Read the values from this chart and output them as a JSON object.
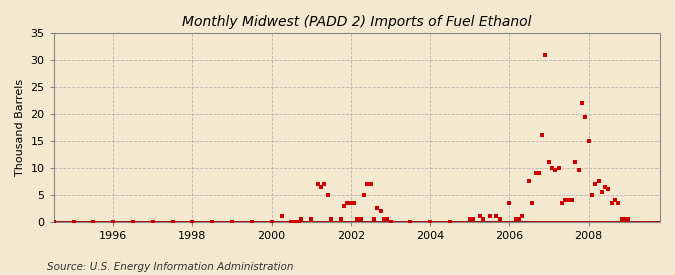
{
  "title": "Monthly Midwest (PADD 2) Imports of Fuel Ethanol",
  "ylabel": "Thousand Barrels",
  "source": "Source: U.S. Energy Information Administration",
  "background_color": "#f5e8d0",
  "plot_bg_color": "#f5e8d0",
  "marker_color": "#cc0000",
  "line_color": "#8b0000",
  "ylim": [
    0,
    35
  ],
  "yticks": [
    0,
    5,
    10,
    15,
    20,
    25,
    30,
    35
  ],
  "xlim_start": 1994.5,
  "xlim_end": 2009.8,
  "xticks": [
    1996,
    1998,
    2000,
    2002,
    2004,
    2006,
    2008
  ],
  "data_points": [
    [
      1994.5,
      0
    ],
    [
      1995.0,
      0
    ],
    [
      1995.5,
      0
    ],
    [
      1996.0,
      0
    ],
    [
      1996.5,
      0
    ],
    [
      1997.0,
      0
    ],
    [
      1997.5,
      0
    ],
    [
      1998.0,
      0
    ],
    [
      1998.5,
      0
    ],
    [
      1999.0,
      0
    ],
    [
      1999.5,
      0
    ],
    [
      2000.0,
      0
    ],
    [
      2000.25,
      1.0
    ],
    [
      2000.5,
      0
    ],
    [
      2000.6,
      0
    ],
    [
      2000.7,
      0
    ],
    [
      2000.75,
      0.5
    ],
    [
      2001.0,
      0.5
    ],
    [
      2001.16,
      7.0
    ],
    [
      2001.25,
      6.5
    ],
    [
      2001.33,
      7.0
    ],
    [
      2001.41,
      5.0
    ],
    [
      2001.5,
      0.5
    ],
    [
      2001.75,
      0.5
    ],
    [
      2001.83,
      3.0
    ],
    [
      2001.91,
      3.5
    ],
    [
      2002.0,
      3.5
    ],
    [
      2002.083,
      3.5
    ],
    [
      2002.16,
      0.5
    ],
    [
      2002.25,
      0.5
    ],
    [
      2002.33,
      5.0
    ],
    [
      2002.41,
      7.0
    ],
    [
      2002.5,
      7.0
    ],
    [
      2002.58,
      0.5
    ],
    [
      2002.66,
      2.5
    ],
    [
      2002.75,
      2.0
    ],
    [
      2002.83,
      0.5
    ],
    [
      2002.91,
      0.5
    ],
    [
      2003.0,
      0
    ],
    [
      2003.5,
      0
    ],
    [
      2004.0,
      0
    ],
    [
      2004.5,
      0
    ],
    [
      2005.0,
      0.5
    ],
    [
      2005.083,
      0.5
    ],
    [
      2005.25,
      1.0
    ],
    [
      2005.33,
      0.5
    ],
    [
      2005.5,
      1.0
    ],
    [
      2005.66,
      1.0
    ],
    [
      2005.75,
      0.5
    ],
    [
      2006.0,
      3.5
    ],
    [
      2006.16,
      0.5
    ],
    [
      2006.25,
      0.5
    ],
    [
      2006.33,
      1.0
    ],
    [
      2006.5,
      7.5
    ],
    [
      2006.58,
      3.5
    ],
    [
      2006.66,
      9.0
    ],
    [
      2006.75,
      9.0
    ],
    [
      2006.83,
      16.0
    ],
    [
      2006.91,
      31.0
    ],
    [
      2007.0,
      11.0
    ],
    [
      2007.083,
      10.0
    ],
    [
      2007.16,
      9.5
    ],
    [
      2007.25,
      10.0
    ],
    [
      2007.33,
      3.5
    ],
    [
      2007.41,
      4.0
    ],
    [
      2007.5,
      4.0
    ],
    [
      2007.58,
      4.0
    ],
    [
      2007.66,
      11.0
    ],
    [
      2007.75,
      9.5
    ],
    [
      2007.83,
      22.0
    ],
    [
      2007.91,
      19.5
    ],
    [
      2008.0,
      15.0
    ],
    [
      2008.083,
      5.0
    ],
    [
      2008.16,
      7.0
    ],
    [
      2008.25,
      7.5
    ],
    [
      2008.33,
      5.5
    ],
    [
      2008.41,
      6.5
    ],
    [
      2008.5,
      6.0
    ],
    [
      2008.58,
      3.5
    ],
    [
      2008.66,
      4.0
    ],
    [
      2008.75,
      3.5
    ],
    [
      2008.83,
      0.5
    ],
    [
      2008.91,
      0.5
    ],
    [
      2009.0,
      0.5
    ]
  ]
}
